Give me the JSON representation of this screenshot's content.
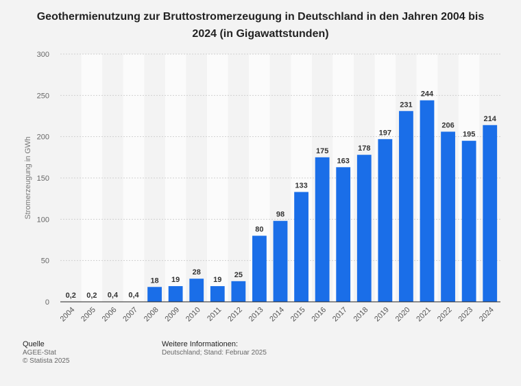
{
  "chart_data": {
    "type": "bar",
    "title": "Geothermienutzung zur Bruttostromerzeugung in Deutschland in den Jahren 2004 bis 2024 (in Gigawattstunden)",
    "ylabel": "Stromerzeugung in GWh",
    "xlabel": "",
    "ylim": [
      0,
      300
    ],
    "yticks": [
      0,
      50,
      100,
      150,
      200,
      250,
      300
    ],
    "categories": [
      "2004",
      "2005",
      "2006",
      "2007",
      "2008",
      "2009",
      "2010",
      "2011",
      "2012",
      "2013",
      "2014",
      "2015",
      "2016",
      "2017",
      "2018",
      "2019",
      "2020",
      "2021",
      "2022",
      "2023",
      "2024"
    ],
    "values": [
      0.2,
      0.2,
      0.4,
      0.4,
      18,
      19,
      28,
      19,
      25,
      80,
      98,
      133,
      175,
      163,
      178,
      197,
      231,
      244,
      206,
      195,
      214
    ],
    "value_labels": [
      "0,2",
      "0,2",
      "0,4",
      "0,4",
      "18",
      "19",
      "28",
      "19",
      "25",
      "80",
      "98",
      "133",
      "175",
      "163",
      "178",
      "197",
      "231",
      "244",
      "206",
      "195",
      "214"
    ],
    "bar_color": "#1a6ee8",
    "grid": true
  },
  "footer": {
    "source_heading": "Quelle",
    "source_lines": [
      "AGEE-Stat",
      "© Statista 2025"
    ],
    "info_heading": "Weitere Informationen:",
    "info_text": "Deutschland; Stand: Februar 2025"
  }
}
